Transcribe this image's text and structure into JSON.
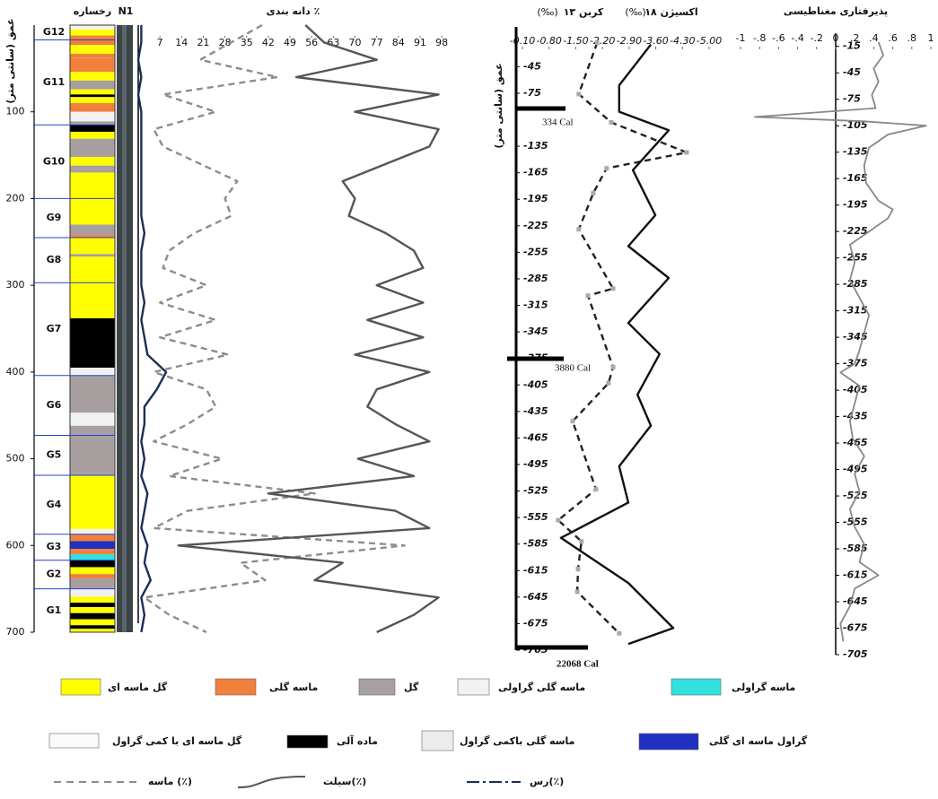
{
  "chart_data": [
    {
      "type": "column",
      "title": "رخساره",
      "strip_title": "N1",
      "y_label": "عمق (سانتی متر)",
      "ylim": [
        0,
        700
      ],
      "yticks": [
        100,
        200,
        300,
        400,
        500,
        600,
        700
      ],
      "units": [
        {
          "name": "G12",
          "top": 0,
          "bottom": 17
        },
        {
          "name": "G11",
          "top": 17,
          "bottom": 115
        },
        {
          "name": "G10",
          "top": 115,
          "bottom": 200
        },
        {
          "name": "G9",
          "top": 200,
          "bottom": 245
        },
        {
          "name": "G8",
          "top": 245,
          "bottom": 297
        },
        {
          "name": "G7",
          "top": 297,
          "bottom": 404
        },
        {
          "name": "G6",
          "top": 404,
          "bottom": 473
        },
        {
          "name": "G5",
          "top": 473,
          "bottom": 519
        },
        {
          "name": "G4",
          "top": 519,
          "bottom": 587
        },
        {
          "name": "G3",
          "top": 587,
          "bottom": 617
        },
        {
          "name": "G2",
          "top": 617,
          "bottom": 650
        },
        {
          "name": "G1",
          "top": 650,
          "bottom": 700
        }
      ],
      "layers": [
        {
          "top": 0,
          "bottom": 5,
          "color": "#f2f2f2"
        },
        {
          "top": 5,
          "bottom": 12,
          "color": "#ffff00"
        },
        {
          "top": 12,
          "bottom": 23,
          "color": "#f0803c"
        },
        {
          "top": 23,
          "bottom": 33,
          "color": "#ffff00"
        },
        {
          "top": 33,
          "bottom": 38,
          "color": "#f0803c"
        },
        {
          "top": 38,
          "bottom": 54,
          "color": "#f0803c"
        },
        {
          "top": 54,
          "bottom": 64,
          "color": "#ffff00"
        },
        {
          "top": 64,
          "bottom": 74,
          "color": "#a8a0a0"
        },
        {
          "top": 74,
          "bottom": 80,
          "color": "#ffff00"
        },
        {
          "top": 80,
          "bottom": 83,
          "color": "#000000"
        },
        {
          "top": 83,
          "bottom": 90,
          "color": "#ffff00"
        },
        {
          "top": 90,
          "bottom": 100,
          "color": "#f0803c"
        },
        {
          "top": 100,
          "bottom": 111,
          "color": "#f2f2f2"
        },
        {
          "top": 111,
          "bottom": 115,
          "color": "#a8a0a0"
        },
        {
          "top": 115,
          "bottom": 123,
          "color": "#000000"
        },
        {
          "top": 123,
          "bottom": 131,
          "color": "#ffff00"
        },
        {
          "top": 131,
          "bottom": 152,
          "color": "#a8a0a0"
        },
        {
          "top": 152,
          "bottom": 162,
          "color": "#ffff00"
        },
        {
          "top": 162,
          "bottom": 170,
          "color": "#a8a0a0"
        },
        {
          "top": 170,
          "bottom": 200,
          "color": "#ffff00"
        },
        {
          "top": 200,
          "bottom": 230,
          "color": "#ffff00"
        },
        {
          "top": 230,
          "bottom": 242,
          "color": "#a8a0a0"
        },
        {
          "top": 242,
          "bottom": 245,
          "color": "#f0803c"
        },
        {
          "top": 245,
          "bottom": 264,
          "color": "#ffff00"
        },
        {
          "top": 264,
          "bottom": 267,
          "color": "#a8a0a0"
        },
        {
          "top": 267,
          "bottom": 338,
          "color": "#ffff00"
        },
        {
          "top": 338,
          "bottom": 395,
          "color": "#000000"
        },
        {
          "top": 395,
          "bottom": 404,
          "color": "#f2f2f2"
        },
        {
          "top": 404,
          "bottom": 447,
          "color": "#a8a0a0"
        },
        {
          "top": 447,
          "bottom": 462,
          "color": "#f2f2f2"
        },
        {
          "top": 462,
          "bottom": 519,
          "color": "#a8a0a0"
        },
        {
          "top": 519,
          "bottom": 581,
          "color": "#ffff00"
        },
        {
          "top": 581,
          "bottom": 587,
          "color": "#f2f2f2"
        },
        {
          "top": 587,
          "bottom": 595,
          "color": "#f0803c"
        },
        {
          "top": 595,
          "bottom": 604,
          "color": "#2030c0"
        },
        {
          "top": 604,
          "bottom": 610,
          "color": "#f0803c"
        },
        {
          "top": 610,
          "bottom": 617,
          "color": "#33e0e0"
        },
        {
          "top": 617,
          "bottom": 625,
          "color": "#000000"
        },
        {
          "top": 625,
          "bottom": 633,
          "color": "#ffff00"
        },
        {
          "top": 633,
          "bottom": 638,
          "color": "#f0803c"
        },
        {
          "top": 638,
          "bottom": 650,
          "color": "#a8a0a0"
        },
        {
          "top": 650,
          "bottom": 659,
          "color": "#f2f2f2"
        },
        {
          "top": 659,
          "bottom": 666,
          "color": "#ffff00"
        },
        {
          "top": 666,
          "bottom": 671,
          "color": "#000000"
        },
        {
          "top": 671,
          "bottom": 678,
          "color": "#ffff00"
        },
        {
          "top": 678,
          "bottom": 685,
          "color": "#000000"
        },
        {
          "top": 685,
          "bottom": 692,
          "color": "#ffff00"
        },
        {
          "top": 692,
          "bottom": 696,
          "color": "#000000"
        },
        {
          "top": 696,
          "bottom": 700,
          "color": "#ffff00"
        }
      ]
    },
    {
      "type": "line",
      "title": "دانه بندی ٪",
      "xlim": [
        0,
        100
      ],
      "xticks": [
        7,
        14,
        21,
        28,
        35,
        42,
        49,
        56,
        63,
        70,
        77,
        84,
        91,
        98
      ],
      "ylim": [
        0,
        700
      ],
      "depth": [
        0,
        20,
        40,
        60,
        80,
        100,
        120,
        140,
        160,
        180,
        200,
        220,
        240,
        260,
        280,
        300,
        320,
        340,
        360,
        380,
        400,
        420,
        440,
        460,
        480,
        500,
        520,
        540,
        560,
        580,
        600,
        620,
        640,
        660,
        680,
        700
      ],
      "series": [
        {
          "name": "ماسه (٪)",
          "color": "#8c8c8c",
          "dashed": true,
          "values": [
            40,
            30,
            20,
            45,
            8,
            25,
            5,
            8,
            20,
            32,
            28,
            30,
            18,
            10,
            8,
            22,
            7,
            25,
            7,
            29,
            5,
            22,
            25,
            16,
            5,
            27,
            10,
            57,
            16,
            5,
            86,
            33,
            41,
            2,
            10,
            22
          ]
        },
        {
          "name": "سیلت(٪)",
          "color": "#555555",
          "dashed": false,
          "values": [
            54,
            60,
            77,
            51,
            97,
            70,
            97,
            94,
            80,
            66,
            70,
            68,
            80,
            89,
            92,
            77,
            92,
            74,
            92,
            70,
            94,
            77,
            74,
            83,
            94,
            71,
            89,
            42,
            83,
            94,
            13,
            66,
            57,
            97,
            89,
            77
          ]
        },
        {
          "name": "رس(٪)",
          "color": "#1a2e5a",
          "dashed": false,
          "values": [
            1,
            1,
            0,
            1,
            0,
            1,
            1,
            1,
            1,
            1,
            1,
            1,
            2,
            1,
            1,
            1,
            2,
            1,
            2,
            3,
            9,
            6,
            2,
            2,
            1,
            2,
            1,
            3,
            2,
            1,
            3,
            2,
            4,
            1,
            2,
            1
          ]
        }
      ]
    },
    {
      "type": "line",
      "y_label": "عمق (سانتی متر)",
      "xlim": [
        -0.1,
        -5.0
      ],
      "xticks": [
        {
          "value": -0.1,
          "label": "-0.10"
        },
        {
          "value": -0.8,
          "label": "-0.80"
        },
        {
          "value": -1.5,
          "label": "-1.50"
        },
        {
          "value": -2.2,
          "label": "-2.20"
        },
        {
          "value": -2.9,
          "label": "-2.90"
        },
        {
          "value": -3.6,
          "label": "-3.60"
        },
        {
          "value": -4.3,
          "label": "-4.30"
        },
        {
          "value": -5.0,
          "label": "-5.00"
        }
      ],
      "ylim": [
        0,
        -705
      ],
      "yticks": [
        -45,
        -75,
        -135,
        -165,
        -195,
        -225,
        -255,
        -285,
        -315,
        -345,
        -375,
        -405,
        -435,
        -465,
        -495,
        -525,
        -555,
        -585,
        -615,
        -645,
        -675,
        -705
      ],
      "series": [
        {
          "name": "کربن ۱۳",
          "unit": "(‰)",
          "color": "#222222",
          "dashed": true,
          "markers": true,
          "depth": [
            -18,
            -76,
            -108,
            -142,
            -160,
            -188,
            -229,
            -296,
            -304,
            -385,
            -403,
            -446,
            -523,
            -558,
            -582,
            -613,
            -639,
            -686
          ],
          "values": [
            -2.06,
            -1.58,
            -2.43,
            -4.41,
            -2.31,
            -1.96,
            -1.58,
            -2.48,
            -1.82,
            -2.48,
            -2.36,
            -1.42,
            -2.03,
            -1.04,
            -1.65,
            -1.56,
            -1.54,
            -2.64
          ]
        },
        {
          "name": "اکسیژن ۱۸",
          "unit": "(‰)",
          "color": "#111111",
          "dashed": false,
          "markers": false,
          "depth": [
            -20,
            -66,
            -96,
            -117,
            -162,
            -213,
            -248,
            -284,
            -335,
            -370,
            -416,
            -451,
            -497,
            -538,
            -578,
            -629,
            -680,
            -698
          ],
          "values": [
            -3.47,
            -2.64,
            -2.64,
            -3.94,
            -3.0,
            -3.59,
            -2.88,
            -3.94,
            -2.88,
            -3.7,
            -3.12,
            -3.47,
            -2.64,
            -2.88,
            -1.11,
            -2.88,
            -4.06,
            -2.88
          ]
        }
      ],
      "annotations": [
        "334 Cal",
        "3880 Cal",
        "22068 Cal"
      ]
    },
    {
      "type": "line",
      "title": "پذیرفتاری مغناطیسی",
      "xlim": [
        -1,
        1
      ],
      "xticks": [
        -1,
        {
          "value": -0.8,
          "label": "-.8"
        },
        {
          "value": -0.6,
          "label": "-.6"
        },
        {
          "value": -0.4,
          "label": "-.4"
        },
        {
          "value": -0.2,
          "label": "-.2"
        },
        0,
        {
          "value": 0.2,
          "label": ".2"
        },
        {
          "value": 0.4,
          "label": ".4"
        },
        {
          "value": 0.6,
          "label": ".6"
        },
        {
          "value": 0.8,
          "label": ".8"
        },
        1
      ],
      "ylim": [
        0,
        -705
      ],
      "yticks": [
        -15,
        -45,
        -75,
        -105,
        -135,
        -165,
        -195,
        -225,
        -255,
        -285,
        -315,
        -345,
        -375,
        -405,
        -435,
        -465,
        -495,
        -525,
        -555,
        -585,
        -615,
        -645,
        -675,
        -705
      ],
      "series": [
        {
          "color": "#888888",
          "dashed": false,
          "markers": false,
          "depth": [
            -10,
            -25,
            -40,
            -55,
            -70,
            -85,
            -95,
            -100,
            -105,
            -115,
            -130,
            -150,
            -170,
            -190,
            -200,
            -210,
            -225,
            -240,
            -260,
            -280,
            -300,
            -320,
            -340,
            -360,
            -375,
            -385,
            -400,
            -420,
            -440,
            -460,
            -480,
            -500,
            -520,
            -540,
            -560,
            -580,
            -600,
            -615,
            -630,
            -650,
            -670,
            -690
          ],
          "values": [
            0.45,
            0.5,
            0.4,
            0.45,
            0.38,
            0.42,
            -0.85,
            0.3,
            0.95,
            0.55,
            0.35,
            0.3,
            0.32,
            0.45,
            0.6,
            0.55,
            0.35,
            0.15,
            0.2,
            0.15,
            0.25,
            0.35,
            0.3,
            0.25,
            0.2,
            0.05,
            0.25,
            0.2,
            0.15,
            0.18,
            0.3,
            0.2,
            0.25,
            0.15,
            0.2,
            0.3,
            0.25,
            0.45,
            0.2,
            0.15,
            0.05,
            0.08
          ]
        }
      ]
    }
  ],
  "legend": [
    {
      "label": "گل ماسه ای",
      "color": "#ffff00"
    },
    {
      "label": "ماسه گلی",
      "color": "#f0803c"
    },
    {
      "label": "گل",
      "color": "#a8a0a0"
    },
    {
      "label": "ماسه گلی گراولی",
      "color": "#f2f2f2"
    },
    {
      "label": "ماسه گراولی",
      "color": "#33e0e0"
    },
    {
      "label": "گل ماسه ای با کمی گراول",
      "color": "#fafafa"
    },
    {
      "label": "ماده آلی",
      "color": "#000000"
    },
    {
      "label": "ماسه گلی باکمی گراول",
      "color": "#ececec"
    },
    {
      "label": "گراول ماسه ای گلی",
      "color": "#2030c0"
    }
  ]
}
